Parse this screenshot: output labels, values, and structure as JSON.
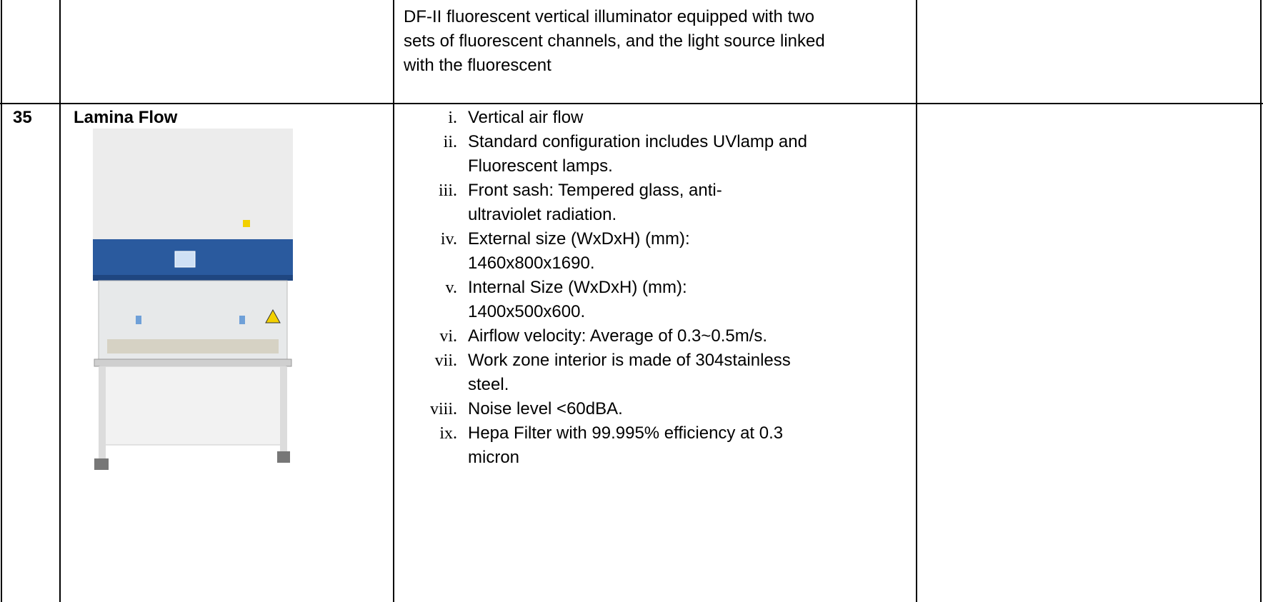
{
  "table": {
    "rows": [
      {
        "description": [
          "DF-II fluorescent vertical illuminator equipped with two",
          "sets of fluorescent channels, and the light source linked",
          "with the fluorescent"
        ]
      },
      {
        "number": "35",
        "item": "Lamina Flow",
        "specs": [
          {
            "marker": "i.",
            "lines": [
              "Vertical air flow"
            ]
          },
          {
            "marker": "ii.",
            "lines": [
              "Standard configuration includes UVlamp and",
              "Fluorescent lamps."
            ]
          },
          {
            "marker": "iii.",
            "lines": [
              "Front sash: Tempered glass, anti-",
              "ultraviolet radiation."
            ]
          },
          {
            "marker": "iv.",
            "lines": [
              "External size (WxDxH) (mm):",
              "1460x800x1690."
            ]
          },
          {
            "marker": "v.",
            "lines": [
              "Internal Size (WxDxH) (mm):",
              "1400x500x600."
            ]
          },
          {
            "marker": "vi.",
            "lines": [
              "Airflow velocity: Average of 0.3~0.5m/s."
            ]
          },
          {
            "marker": "vii.",
            "lines": [
              "Work zone interior is made of 304stainless",
              "steel."
            ]
          },
          {
            "marker": "viii.",
            "lines": [
              "Noise level <60dBA."
            ]
          },
          {
            "marker": "ix.",
            "lines": [
              "Hepa Filter with 99.995% efficiency at 0.3",
              "micron"
            ]
          }
        ]
      }
    ]
  }
}
